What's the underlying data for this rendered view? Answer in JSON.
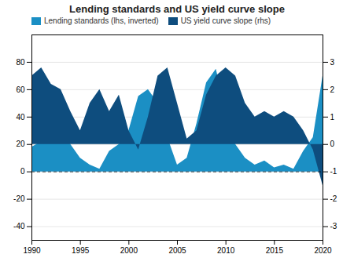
{
  "chart_data": {
    "type": "area",
    "title": "Lending standards and US yield curve slope",
    "x": [
      1990,
      1991,
      1992,
      1993,
      1994,
      1995,
      1996,
      1997,
      1998,
      1999,
      2000,
      2001,
      2002,
      2003,
      2004,
      2005,
      2006,
      2007,
      2008,
      2009,
      2010,
      2011,
      2012,
      2013,
      2014,
      2015,
      2016,
      2017,
      2018,
      2019,
      2020
    ],
    "series": [
      {
        "name": "Lending standards (lhs, inverted)",
        "color": "#1b8fc4",
        "axis": "y",
        "values": [
          18,
          22,
          30,
          28,
          20,
          10,
          5,
          2,
          15,
          20,
          30,
          55,
          60,
          50,
          25,
          5,
          10,
          35,
          65,
          75,
          45,
          20,
          10,
          5,
          8,
          3,
          5,
          2,
          15,
          25,
          70
        ]
      },
      {
        "name": "US yield curve slope (rhs)",
        "color": "#0e4d7e",
        "axis": "y2",
        "values": [
          2.5,
          2.8,
          2.2,
          2.0,
          1.2,
          0.5,
          1.5,
          2.0,
          1.2,
          1.8,
          0.5,
          -0.2,
          1.0,
          2.5,
          2.8,
          1.5,
          0.2,
          0.5,
          1.8,
          2.5,
          2.8,
          2.5,
          1.5,
          1.0,
          1.2,
          1.0,
          1.2,
          1.0,
          0.5,
          -0.2,
          -1.5
        ]
      }
    ],
    "xlim": [
      1990,
      2020
    ],
    "xticks": [
      1990,
      1995,
      2000,
      2005,
      2010,
      2015,
      2020
    ],
    "ylim": [
      -50,
      100
    ],
    "yticks": [
      80,
      60,
      40,
      20,
      0,
      -20,
      -40
    ],
    "y2lim": [
      -3.5,
      4.0
    ],
    "y2ticks": [
      3,
      2,
      1,
      0,
      -1,
      -2,
      -3
    ],
    "grid": true,
    "legend": "upper left"
  }
}
